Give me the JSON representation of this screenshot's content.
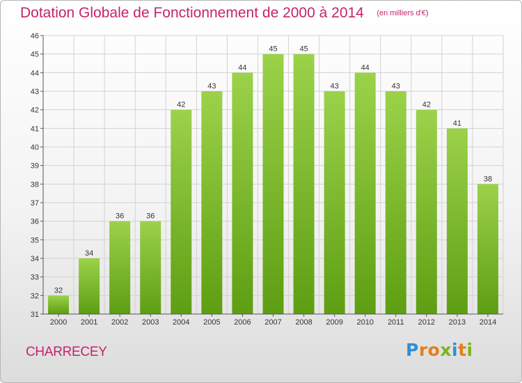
{
  "header": {
    "title": "Dotation Globale de Fonctionnement de 2000 à 2014",
    "subtitle": "(en milliers d'€)"
  },
  "footer": {
    "commune": "CHARRECEY",
    "logo_text": "Proxiti",
    "logo_letters": [
      {
        "char": "P",
        "color": "#2f8fd6"
      },
      {
        "char": "r",
        "color": "#e0801a"
      },
      {
        "char": "o",
        "color": "#e0801a"
      },
      {
        "char": "x",
        "color": "#7ab51d"
      },
      {
        "char": "i",
        "color": "#2f8fd6"
      },
      {
        "char": "t",
        "color": "#e0801a"
      },
      {
        "char": "i",
        "color": "#7ab51d"
      }
    ]
  },
  "colors": {
    "accent": "#c4246a",
    "bar_top": "#9bd24a",
    "bar_bottom": "#5e9e12",
    "grid": "#d2d2d2",
    "axis": "#555555",
    "text": "#333333"
  },
  "chart_data": {
    "type": "bar",
    "title": "Dotation Globale de Fonctionnement de 2000 à 2014",
    "subtitle": "(en milliers d'€)",
    "xlabel": "",
    "ylabel": "",
    "categories": [
      "2000",
      "2001",
      "2002",
      "2003",
      "2004",
      "2005",
      "2006",
      "2007",
      "2008",
      "2009",
      "2010",
      "2011",
      "2012",
      "2013",
      "2014"
    ],
    "values": [
      32,
      34,
      36,
      36,
      42,
      43,
      44,
      45,
      45,
      43,
      44,
      43,
      42,
      41,
      38
    ],
    "ylim": [
      31,
      46
    ],
    "yticks": [
      31,
      32,
      33,
      34,
      35,
      36,
      37,
      38,
      39,
      40,
      41,
      42,
      43,
      44,
      45,
      46
    ],
    "grid": true,
    "data_labels": true
  }
}
